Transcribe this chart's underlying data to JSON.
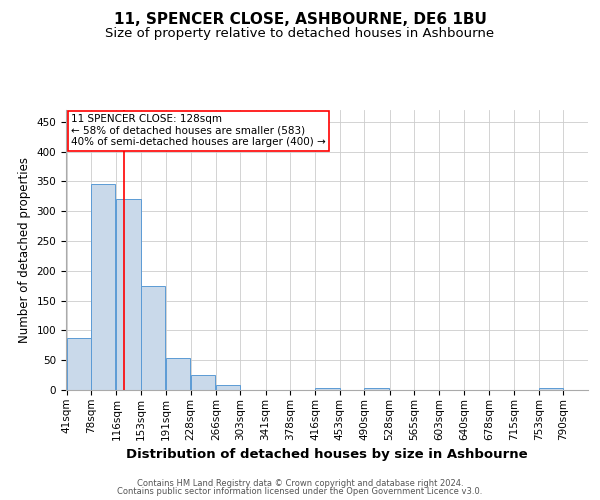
{
  "title": "11, SPENCER CLOSE, ASHBOURNE, DE6 1BU",
  "subtitle": "Size of property relative to detached houses in Ashbourne",
  "xlabel": "Distribution of detached houses by size in Ashbourne",
  "ylabel": "Number of detached properties",
  "bins": [
    41,
    78,
    116,
    153,
    191,
    228,
    266,
    303,
    341,
    378,
    416,
    453,
    490,
    528,
    565,
    603,
    640,
    678,
    715,
    753,
    790
  ],
  "counts": [
    88,
    345,
    320,
    175,
    53,
    25,
    8,
    0,
    0,
    0,
    4,
    0,
    4,
    0,
    0,
    0,
    0,
    0,
    0,
    4,
    0
  ],
  "bar_color": "#c9d9ea",
  "bar_edge_color": "#5b9bd5",
  "red_line_x": 128,
  "annotation_line1": "11 SPENCER CLOSE: 128sqm",
  "annotation_line2": "← 58% of detached houses are smaller (583)",
  "annotation_line3": "40% of semi-detached houses are larger (400) →",
  "ylim": [
    0,
    470
  ],
  "yticks": [
    0,
    50,
    100,
    150,
    200,
    250,
    300,
    350,
    400,
    450
  ],
  "footer1": "Contains HM Land Registry data © Crown copyright and database right 2024.",
  "footer2": "Contains public sector information licensed under the Open Government Licence v3.0.",
  "bg_color": "#ffffff",
  "grid_color": "#cccccc",
  "title_fontsize": 11,
  "subtitle_fontsize": 9.5,
  "xlabel_fontsize": 9.5,
  "ylabel_fontsize": 8.5,
  "tick_fontsize": 7.5,
  "annotation_fontsize": 7.5,
  "footer_fontsize": 6
}
